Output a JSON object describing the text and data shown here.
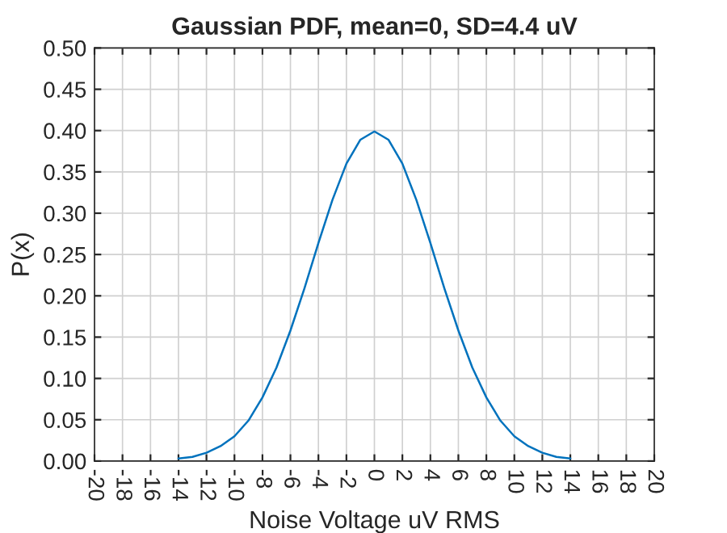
{
  "chart_data": {
    "type": "line",
    "title": "Gaussian PDF, mean=0, SD=4.4 uV",
    "xlabel": "Noise Voltage uV RMS",
    "ylabel": "P(x)",
    "series": [
      {
        "color": "#0072bd",
        "x": [
          -14,
          -13,
          -12,
          -11,
          -10,
          -9,
          -8,
          -7,
          -6,
          -5,
          -4,
          -3,
          -2,
          -1,
          0,
          1,
          2,
          3,
          4,
          5,
          6,
          7,
          8,
          9,
          10,
          11,
          12,
          13,
          14
        ],
        "values": [
          0.003,
          0.005,
          0.01,
          0.018,
          0.03,
          0.049,
          0.077,
          0.113,
          0.158,
          0.209,
          0.264,
          0.316,
          0.36,
          0.389,
          0.399,
          0.389,
          0.36,
          0.316,
          0.264,
          0.209,
          0.158,
          0.113,
          0.077,
          0.049,
          0.03,
          0.018,
          0.01,
          0.005,
          0.003
        ]
      }
    ],
    "xlim": [
      -20,
      20
    ],
    "xticks": [
      -20,
      -18,
      -16,
      -14,
      -12,
      -10,
      -8,
      -6,
      -4,
      -2,
      0,
      2,
      4,
      6,
      8,
      10,
      12,
      14,
      16,
      18,
      20
    ],
    "ylim": [
      0,
      0.5
    ],
    "yticks": [
      {
        "value": 0,
        "label": "0.00"
      },
      {
        "value": 0.05,
        "label": "0.05"
      },
      {
        "value": 0.1,
        "label": "0.10"
      },
      {
        "value": 0.15,
        "label": "0.15"
      },
      {
        "value": 0.2,
        "label": "0.20"
      },
      {
        "value": 0.25,
        "label": "0.25"
      },
      {
        "value": 0.3,
        "label": "0.30"
      },
      {
        "value": 0.35,
        "label": "0.35"
      },
      {
        "value": 0.4,
        "label": "0.40"
      },
      {
        "value": 0.45,
        "label": "0.45"
      },
      {
        "value": 0.5,
        "label": "0.50"
      }
    ],
    "grid": true,
    "line_style": "solid"
  }
}
